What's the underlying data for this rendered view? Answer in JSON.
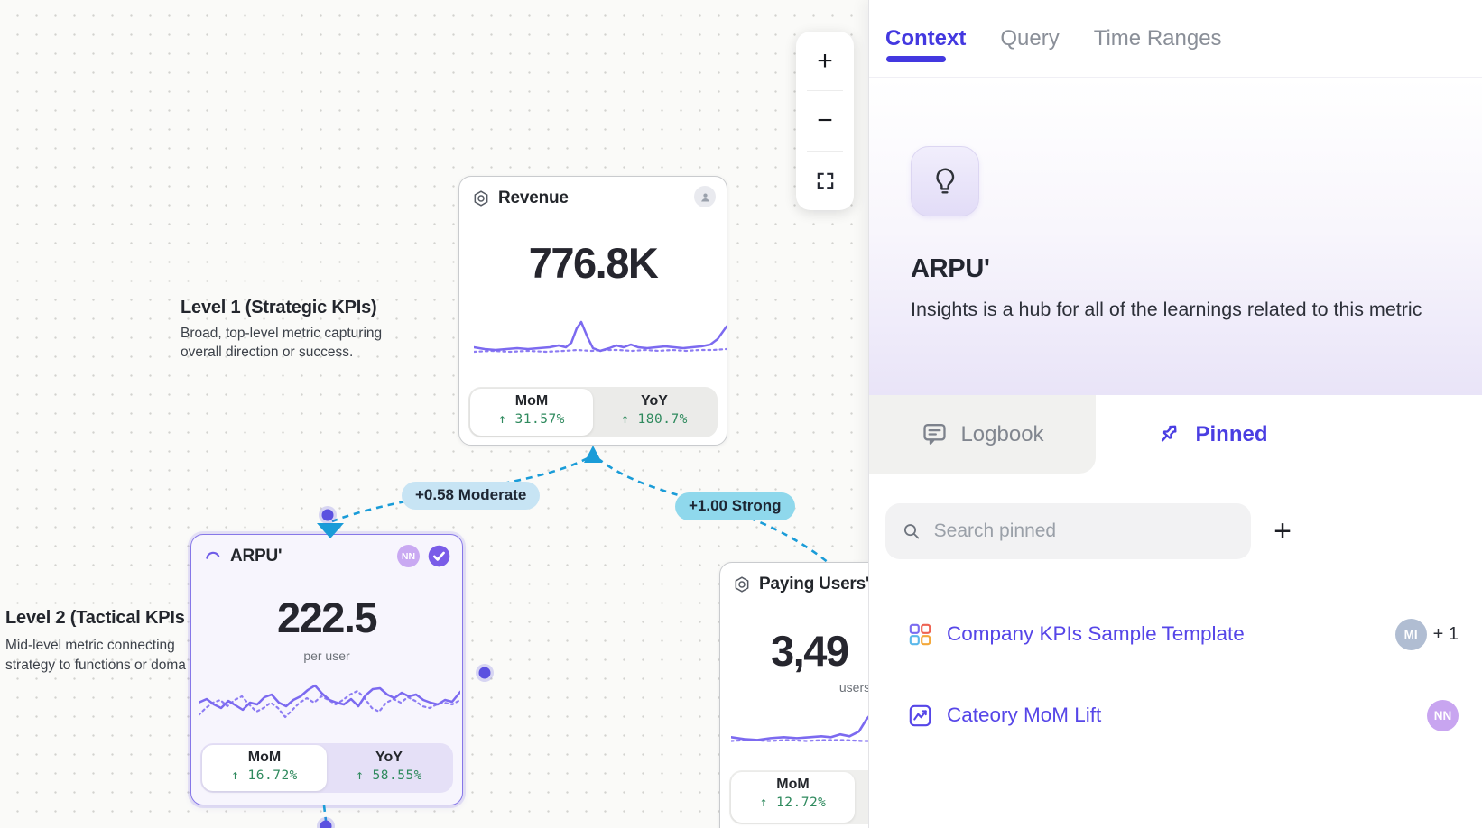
{
  "colors": {
    "accent_indigo": "#4338e0",
    "link_purple": "#5646e8",
    "sparkline_purple": "#7c6af0",
    "positive_green": "#2f8a5e",
    "edge_blue": "#1a9cd8",
    "label_moderate_bg": "#c7e4f4",
    "label_strong_bg": "#8fd8ec",
    "canvas_bg": "#fafaf8"
  },
  "toolbar": {
    "zoom_in": "+",
    "zoom_out": "−"
  },
  "canvas": {
    "level1": {
      "title": "Level 1 (Strategic KPIs)",
      "desc": "Broad, top-level metric capturing overall direction or success."
    },
    "level2": {
      "title": "Level 2 (Tactical KPIs",
      "desc_line1": "Mid-level metric connecting",
      "desc_line2": "strategy to functions or doma"
    },
    "edges": {
      "left_label": "+0.58 Moderate",
      "right_label": "+1.00 Strong"
    },
    "cards": {
      "revenue": {
        "title": "Revenue",
        "value": "776.8K",
        "mom_label": "MoM",
        "mom_value": "↑ 31.57%",
        "yoy_label": "YoY",
        "yoy_value": "↑ 180.7%",
        "spark_solid": [
          [
            0,
            33
          ],
          [
            12,
            35
          ],
          [
            24,
            36
          ],
          [
            36,
            35
          ],
          [
            48,
            34
          ],
          [
            60,
            35
          ],
          [
            72,
            34
          ],
          [
            84,
            33
          ],
          [
            94,
            31
          ],
          [
            102,
            33
          ],
          [
            108,
            28
          ],
          [
            114,
            12
          ],
          [
            119,
            5
          ],
          [
            126,
            22
          ],
          [
            132,
            34
          ],
          [
            140,
            37
          ],
          [
            150,
            34
          ],
          [
            158,
            31
          ],
          [
            166,
            33
          ],
          [
            174,
            30
          ],
          [
            182,
            33
          ],
          [
            192,
            34
          ],
          [
            202,
            33
          ],
          [
            212,
            32
          ],
          [
            222,
            33
          ],
          [
            232,
            34
          ],
          [
            242,
            33
          ],
          [
            252,
            32
          ],
          [
            262,
            30
          ],
          [
            270,
            24
          ],
          [
            280,
            10
          ]
        ],
        "spark_dotted": [
          [
            0,
            38
          ],
          [
            20,
            37
          ],
          [
            40,
            38
          ],
          [
            60,
            37
          ],
          [
            80,
            38
          ],
          [
            100,
            37
          ],
          [
            115,
            36
          ],
          [
            130,
            37
          ],
          [
            145,
            36
          ],
          [
            160,
            36
          ],
          [
            175,
            37
          ],
          [
            190,
            36
          ],
          [
            205,
            37
          ],
          [
            220,
            36
          ],
          [
            235,
            37
          ],
          [
            250,
            36
          ],
          [
            265,
            36
          ],
          [
            280,
            35
          ]
        ]
      },
      "arpu": {
        "title": "ARPU'",
        "badge": "NN",
        "value": "222.5",
        "unit": "per user",
        "mom_label": "MoM",
        "mom_value": "↑ 16.72%",
        "yoy_label": "YoY",
        "yoy_value": "↑ 58.55%",
        "spark_solid": [
          [
            0,
            28
          ],
          [
            9,
            24
          ],
          [
            17,
            30
          ],
          [
            25,
            34
          ],
          [
            33,
            26
          ],
          [
            41,
            31
          ],
          [
            49,
            36
          ],
          [
            57,
            28
          ],
          [
            65,
            30
          ],
          [
            73,
            22
          ],
          [
            81,
            19
          ],
          [
            89,
            28
          ],
          [
            97,
            32
          ],
          [
            105,
            25
          ],
          [
            113,
            21
          ],
          [
            121,
            14
          ],
          [
            129,
            9
          ],
          [
            137,
            18
          ],
          [
            145,
            25
          ],
          [
            153,
            28
          ],
          [
            161,
            30
          ],
          [
            169,
            24
          ],
          [
            177,
            32
          ],
          [
            185,
            20
          ],
          [
            193,
            13
          ],
          [
            201,
            12
          ],
          [
            209,
            19
          ],
          [
            217,
            23
          ],
          [
            225,
            17
          ],
          [
            233,
            21
          ],
          [
            241,
            19
          ],
          [
            249,
            25
          ],
          [
            257,
            28
          ],
          [
            265,
            30
          ],
          [
            273,
            25
          ],
          [
            281,
            27
          ],
          [
            290,
            16
          ]
        ],
        "spark_dotted": [
          [
            0,
            42
          ],
          [
            8,
            34
          ],
          [
            16,
            28
          ],
          [
            24,
            25
          ],
          [
            32,
            32
          ],
          [
            40,
            25
          ],
          [
            48,
            21
          ],
          [
            56,
            30
          ],
          [
            64,
            38
          ],
          [
            72,
            34
          ],
          [
            80,
            28
          ],
          [
            88,
            34
          ],
          [
            96,
            44
          ],
          [
            104,
            36
          ],
          [
            112,
            28
          ],
          [
            120,
            23
          ],
          [
            128,
            28
          ],
          [
            136,
            21
          ],
          [
            144,
            25
          ],
          [
            152,
            30
          ],
          [
            160,
            25
          ],
          [
            168,
            19
          ],
          [
            176,
            15
          ],
          [
            184,
            23
          ],
          [
            192,
            34
          ],
          [
            200,
            38
          ],
          [
            208,
            28
          ],
          [
            216,
            24
          ],
          [
            224,
            28
          ],
          [
            232,
            22
          ],
          [
            240,
            26
          ],
          [
            248,
            32
          ],
          [
            256,
            34
          ],
          [
            264,
            30
          ],
          [
            272,
            28
          ],
          [
            281,
            30
          ],
          [
            290,
            25
          ]
        ]
      },
      "paying": {
        "title": "Paying Users'",
        "value": "3,49",
        "unit": "users",
        "mom_label": "MoM",
        "mom_value": "↑ 12.72%",
        "spark_solid": [
          [
            0,
            32
          ],
          [
            14,
            34
          ],
          [
            28,
            35
          ],
          [
            42,
            33
          ],
          [
            56,
            32
          ],
          [
            70,
            33
          ],
          [
            84,
            32
          ],
          [
            96,
            31
          ],
          [
            106,
            32
          ],
          [
            116,
            29
          ],
          [
            126,
            31
          ],
          [
            136,
            26
          ],
          [
            144,
            13
          ],
          [
            150,
            6
          ],
          [
            157,
            17
          ],
          [
            164,
            28
          ],
          [
            172,
            32
          ],
          [
            184,
            31
          ],
          [
            196,
            30
          ],
          [
            200,
            30
          ]
        ],
        "spark_dotted": [
          [
            0,
            36
          ],
          [
            20,
            35
          ],
          [
            40,
            36
          ],
          [
            60,
            35
          ],
          [
            80,
            36
          ],
          [
            100,
            35
          ],
          [
            120,
            35
          ],
          [
            140,
            36
          ],
          [
            160,
            36
          ],
          [
            180,
            36
          ],
          [
            200,
            36
          ]
        ]
      }
    }
  },
  "panel": {
    "tabs": [
      {
        "label": "Context",
        "active": true
      },
      {
        "label": "Query",
        "active": false
      },
      {
        "label": "Time Ranges",
        "active": false
      }
    ],
    "hero": {
      "title": "ARPU'",
      "description": "Insights is a hub for all of the learnings related to this metric"
    },
    "subtabs": {
      "logbook": "Logbook",
      "pinned": "Pinned"
    },
    "search": {
      "placeholder": "Search pinned"
    },
    "add_button": "+",
    "pinned_items": [
      {
        "label": "Company KPIs Sample Template",
        "avatar": "MI",
        "extra": "+ 1"
      },
      {
        "label": "Cateory MoM Lift",
        "avatar": "NN"
      }
    ]
  }
}
